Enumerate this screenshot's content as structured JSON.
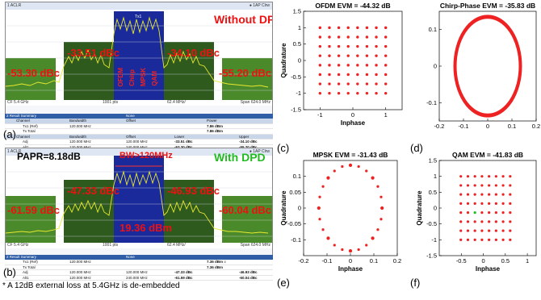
{
  "top_analyzer": {
    "title": "1 ACLR",
    "ref_label": "● 1AP Clrw",
    "band_labels": {
      "center": "Tx1"
    },
    "annotation": "Without DPD",
    "aclr": {
      "lower_alt": "-53.30 dBc",
      "lower_adj": "-33.51 dBc",
      "upper_adj": "-34.10 dBc",
      "upper_alt": "-55.20 dBc"
    },
    "signals": [
      "OFDM",
      "Chirp",
      "MPSK",
      "QAM"
    ],
    "footer": {
      "left": "CF 5.4 GHz",
      "mid": "1001 pts",
      "rbw": "62.4 MHz/",
      "right": "Span 624.0 MHz"
    },
    "table": {
      "title": "2 Result Summary",
      "subtitle": "None",
      "header": {
        "channel": "Channel",
        "bw": "Bandwidth",
        "offset": "Offset",
        "power": "Power"
      },
      "rows": [
        {
          "channel": "Tx1 (Ref)",
          "bw": "120.000 MHz",
          "offset": "",
          "power": "7.86 dBm"
        },
        {
          "channel": "Tx Total",
          "bw": "",
          "offset": "",
          "power": "7.86 dBm"
        }
      ],
      "header2": {
        "channel": "Channel",
        "bw": "Bandwidth",
        "offset": "Offset",
        "lower": "Lower",
        "upper": "Upper"
      },
      "rows2": [
        {
          "channel": "Adj",
          "bw": "120.000 MHz",
          "offset": "120.000 MHz",
          "lower": "-33.51 dBc",
          "upper": "-34.10 dBc"
        },
        {
          "channel": "Alt1",
          "bw": "120.000 MHz",
          "offset": "240.000 MHz",
          "lower": "-53.30 dBc",
          "upper": "-55.20 dBc"
        }
      ]
    }
  },
  "bottom_analyzer": {
    "title": "1 ACLR",
    "ref_label": "● 1AP Clrw",
    "papr": "PAPR=8.18dB",
    "annotation": "With DPD",
    "bw_label": "BW>120MHz",
    "center_power": "19.36 dBm",
    "aclr": {
      "lower_alt": "-61.59 dBc",
      "lower_adj": "-47.33 dBc",
      "upper_adj": "-46.93 dBc",
      "upper_alt": "-60.04 dBc"
    },
    "footer": {
      "left": "CF 5.4 GHz",
      "mid": "1001 pts",
      "rbw": "62.4 MHz/",
      "right": "Span 624.0 MHz"
    },
    "table": {
      "title": "2 Result Summary",
      "subtitle": "None",
      "rows": [
        {
          "channel": "Tx1 (Ref)",
          "bw": "120.000 MHz",
          "offset": "",
          "power": "7.36 dBm ≡"
        },
        {
          "channel": "Tx Total",
          "bw": "",
          "offset": "",
          "power": "7.36 dBm"
        }
      ],
      "rows2": [
        {
          "channel": "Adj",
          "bw": "120.000 MHz",
          "offset": "120.000 MHz",
          "lower": "-47.33 dBc",
          "upper": "-46.93 dBc"
        },
        {
          "channel": "Alt1",
          "bw": "120.000 MHz",
          "offset": "240.000 MHz",
          "lower": "-61.59 dBc",
          "upper": "-60.04 dBc"
        }
      ]
    }
  },
  "labels": {
    "a": "(a)",
    "b": "(b)",
    "c": "(c)",
    "d": "(d)",
    "e": "(e)",
    "f": "(f)"
  },
  "note": "* A 12dB external loss at 5.4GHz is de-embedded",
  "colors": {
    "band_green": "#4a8a2a",
    "band_dark": "#2e5a1e",
    "center_blue": "#1a2a9a",
    "trace": "#e8e830",
    "red_text": "#ee1111",
    "const_dot": "#ee2222",
    "green_text": "#22bb22"
  },
  "chart_data": [
    {
      "type": "scatter",
      "title": "OFDM EVM = -44.32 dB",
      "xlabel": "Inphase",
      "ylabel": "Quadrature",
      "xlim": [
        -1.5,
        1.5
      ],
      "ylim": [
        -1.5,
        1.5
      ],
      "xticks": [
        "-1",
        "0",
        "1"
      ],
      "yticks": [
        "1.5",
        "1",
        "0.5",
        "0",
        "-0.5",
        "-1",
        "-1.5"
      ],
      "grid_levels": [
        -1,
        -0.714,
        -0.429,
        -0.143,
        0.143,
        0.429,
        0.714,
        1
      ]
    },
    {
      "type": "scatter",
      "title": "Chirp-Phase EVM = -35.83 dB",
      "xlabel": "",
      "ylabel": "",
      "xlim": [
        -0.2,
        0.2
      ],
      "ylim": [
        -0.15,
        0.15
      ],
      "xticks": [
        "-0.2",
        "-0.1",
        "0",
        "0.1",
        "0.2"
      ],
      "yticks": [
        "0.1",
        "0",
        "-0.1"
      ],
      "circle_radius": 0.135
    },
    {
      "type": "scatter",
      "title": "MPSK EVM = -31.43 dB",
      "xlabel": "Inphase",
      "ylabel": "Quadrature",
      "xlim": [
        -0.2,
        0.2
      ],
      "ylim": [
        -0.15,
        0.15
      ],
      "xticks": [
        "-0.2",
        "-0.1",
        "0",
        "0.1",
        "0.2"
      ],
      "yticks": [
        "0.1",
        "0.05",
        "0",
        "-0.05",
        "-0.1"
      ],
      "points": [
        [
          0.0,
          0.135
        ],
        [
          0.035,
          0.131
        ],
        [
          0.068,
          0.117
        ],
        [
          0.095,
          0.095
        ],
        [
          0.117,
          0.068
        ],
        [
          0.131,
          0.035
        ],
        [
          0.135,
          0.0
        ],
        [
          0.131,
          -0.035
        ],
        [
          0.117,
          -0.068
        ],
        [
          0.095,
          -0.095
        ],
        [
          0.068,
          -0.117
        ],
        [
          0.035,
          -0.131
        ],
        [
          0.0,
          -0.135
        ],
        [
          -0.035,
          -0.131
        ],
        [
          -0.068,
          -0.117
        ],
        [
          -0.095,
          -0.095
        ],
        [
          -0.117,
          -0.068
        ],
        [
          -0.131,
          -0.035
        ],
        [
          -0.135,
          0.0
        ],
        [
          -0.131,
          0.035
        ],
        [
          -0.117,
          0.068
        ],
        [
          -0.095,
          0.095
        ],
        [
          -0.068,
          0.117
        ],
        [
          -0.035,
          0.131
        ]
      ]
    },
    {
      "type": "scatter",
      "title": "QAM EVM = -41.83 dB",
      "xlabel": "Inphase",
      "ylabel": "Quadrature",
      "xlim": [
        -1,
        1.2
      ],
      "ylim": [
        -1.5,
        1.5
      ],
      "xticks": [
        "-0.5",
        "0",
        "0.5",
        "1"
      ],
      "yticks": [
        "1.5",
        "1",
        "0.5",
        "0",
        "-0.5",
        "-1",
        "-1.5"
      ],
      "levels": [
        -1,
        -0.714,
        -0.429,
        -0.143,
        0.143,
        0.429,
        0.714,
        1
      ]
    }
  ]
}
